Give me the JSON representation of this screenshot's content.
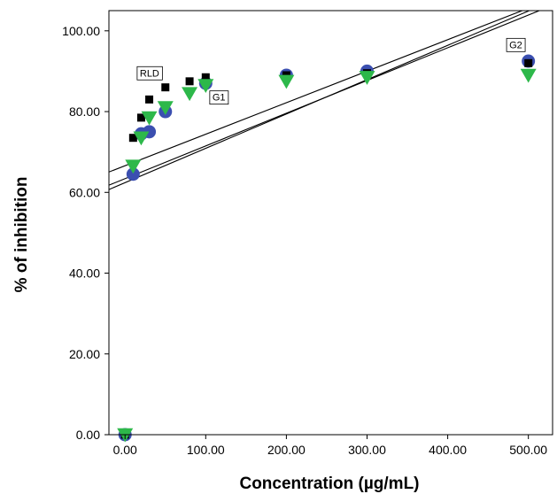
{
  "chart_data": {
    "type": "scatter",
    "title": "",
    "xlabel": "Concentration (µg/mL)",
    "ylabel": "% of inhibition",
    "xlim": [
      -20,
      530
    ],
    "ylim": [
      0,
      105
    ],
    "xticks": [
      0,
      100,
      200,
      300,
      400,
      500
    ],
    "xtick_labels": [
      "0.00",
      "100.00",
      "200.00",
      "300.00",
      "400.00",
      "500.00"
    ],
    "yticks": [
      0,
      20,
      40,
      60,
      80,
      100
    ],
    "ytick_labels": [
      "0.00",
      "20.00",
      "40.00",
      "60.00",
      "80.00",
      "100.00"
    ],
    "grid": false,
    "series": [
      {
        "name": "G1",
        "marker": "circle",
        "color": "#3b4fb0",
        "points": [
          [
            0,
            0
          ],
          [
            10,
            64.5
          ],
          [
            20,
            74.5
          ],
          [
            30,
            75
          ],
          [
            50,
            80
          ],
          [
            100,
            87
          ],
          [
            200,
            89
          ],
          [
            300,
            90
          ],
          [
            500,
            92.5
          ]
        ]
      },
      {
        "name": "RLD",
        "marker": "square",
        "color": "#000000",
        "points": [
          [
            0,
            0
          ],
          [
            10,
            73.5
          ],
          [
            20,
            78.5
          ],
          [
            30,
            83
          ],
          [
            50,
            86
          ],
          [
            80,
            87.5
          ],
          [
            100,
            88.5
          ],
          [
            200,
            89
          ],
          [
            300,
            89.5
          ],
          [
            500,
            92
          ]
        ]
      },
      {
        "name": "G2",
        "marker": "triangle-down",
        "color": "#2db84a",
        "points": [
          [
            0,
            0
          ],
          [
            10,
            66.5
          ],
          [
            20,
            73.5
          ],
          [
            30,
            78.5
          ],
          [
            50,
            81
          ],
          [
            80,
            84.5
          ],
          [
            100,
            86.5
          ],
          [
            200,
            87.5
          ],
          [
            300,
            88.5
          ],
          [
            500,
            89
          ]
        ]
      }
    ],
    "fit_lines": [
      {
        "series": "RLD",
        "color": "#000000",
        "intercept": 66.6,
        "slope": 0.078
      },
      {
        "series": "G1",
        "color": "#000000",
        "intercept": 62.4,
        "slope": 0.085
      },
      {
        "series": "G2",
        "color": "#000000",
        "intercept": 63.4,
        "slope": 0.081
      }
    ],
    "annotations": [
      {
        "text": "RLD",
        "x": 15,
        "y": 88.5
      },
      {
        "text": "G1",
        "x": 105,
        "y": 82.5
      },
      {
        "text": "G2",
        "x": 473,
        "y": 95.5
      }
    ]
  }
}
